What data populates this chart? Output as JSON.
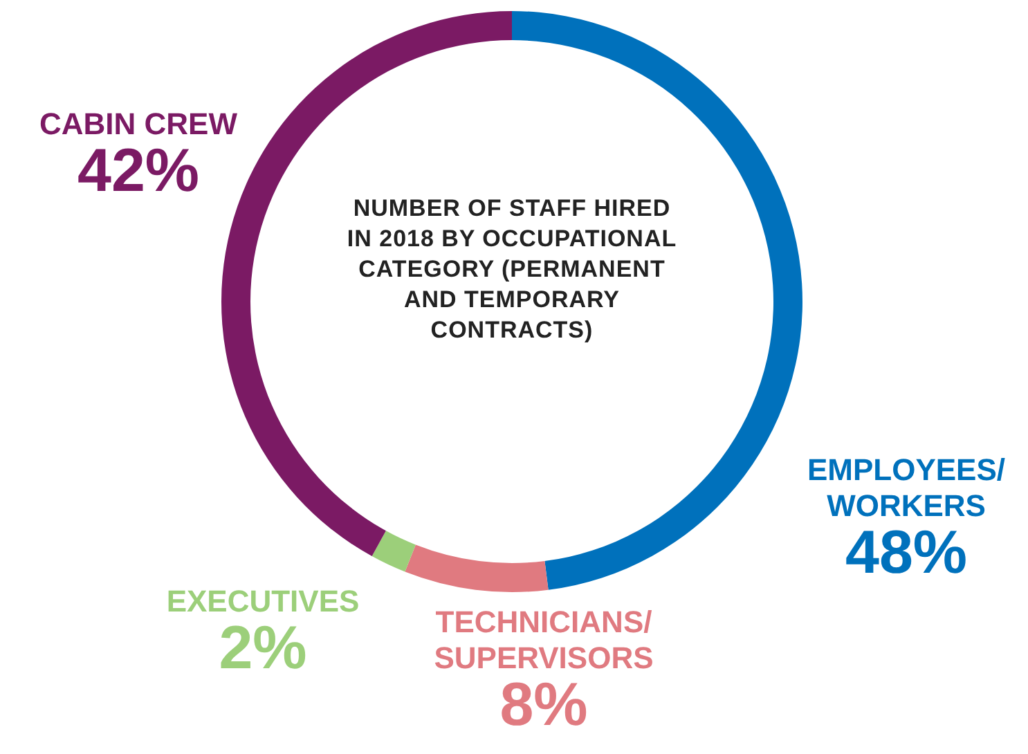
{
  "chart_data": {
    "type": "donut",
    "title": "NUMBER OF STAFF HIRED IN 2018 BY OCCUPATIONAL CATEGORY (PERMANENT AND TEMPORARY CONTRACTS)",
    "categories": [
      "EMPLOYEES/WORKERS",
      "TECHNICIANS/SUPERVISORS",
      "EXECUTIVES",
      "CABIN CREW"
    ],
    "values": [
      48,
      8,
      2,
      42
    ],
    "colors": [
      "#0071bc",
      "#e07a80",
      "#9ccf7a",
      "#7b1a64"
    ],
    "value_labels": [
      "48%",
      "8%",
      "2%",
      "42%"
    ],
    "legend": false
  }
}
